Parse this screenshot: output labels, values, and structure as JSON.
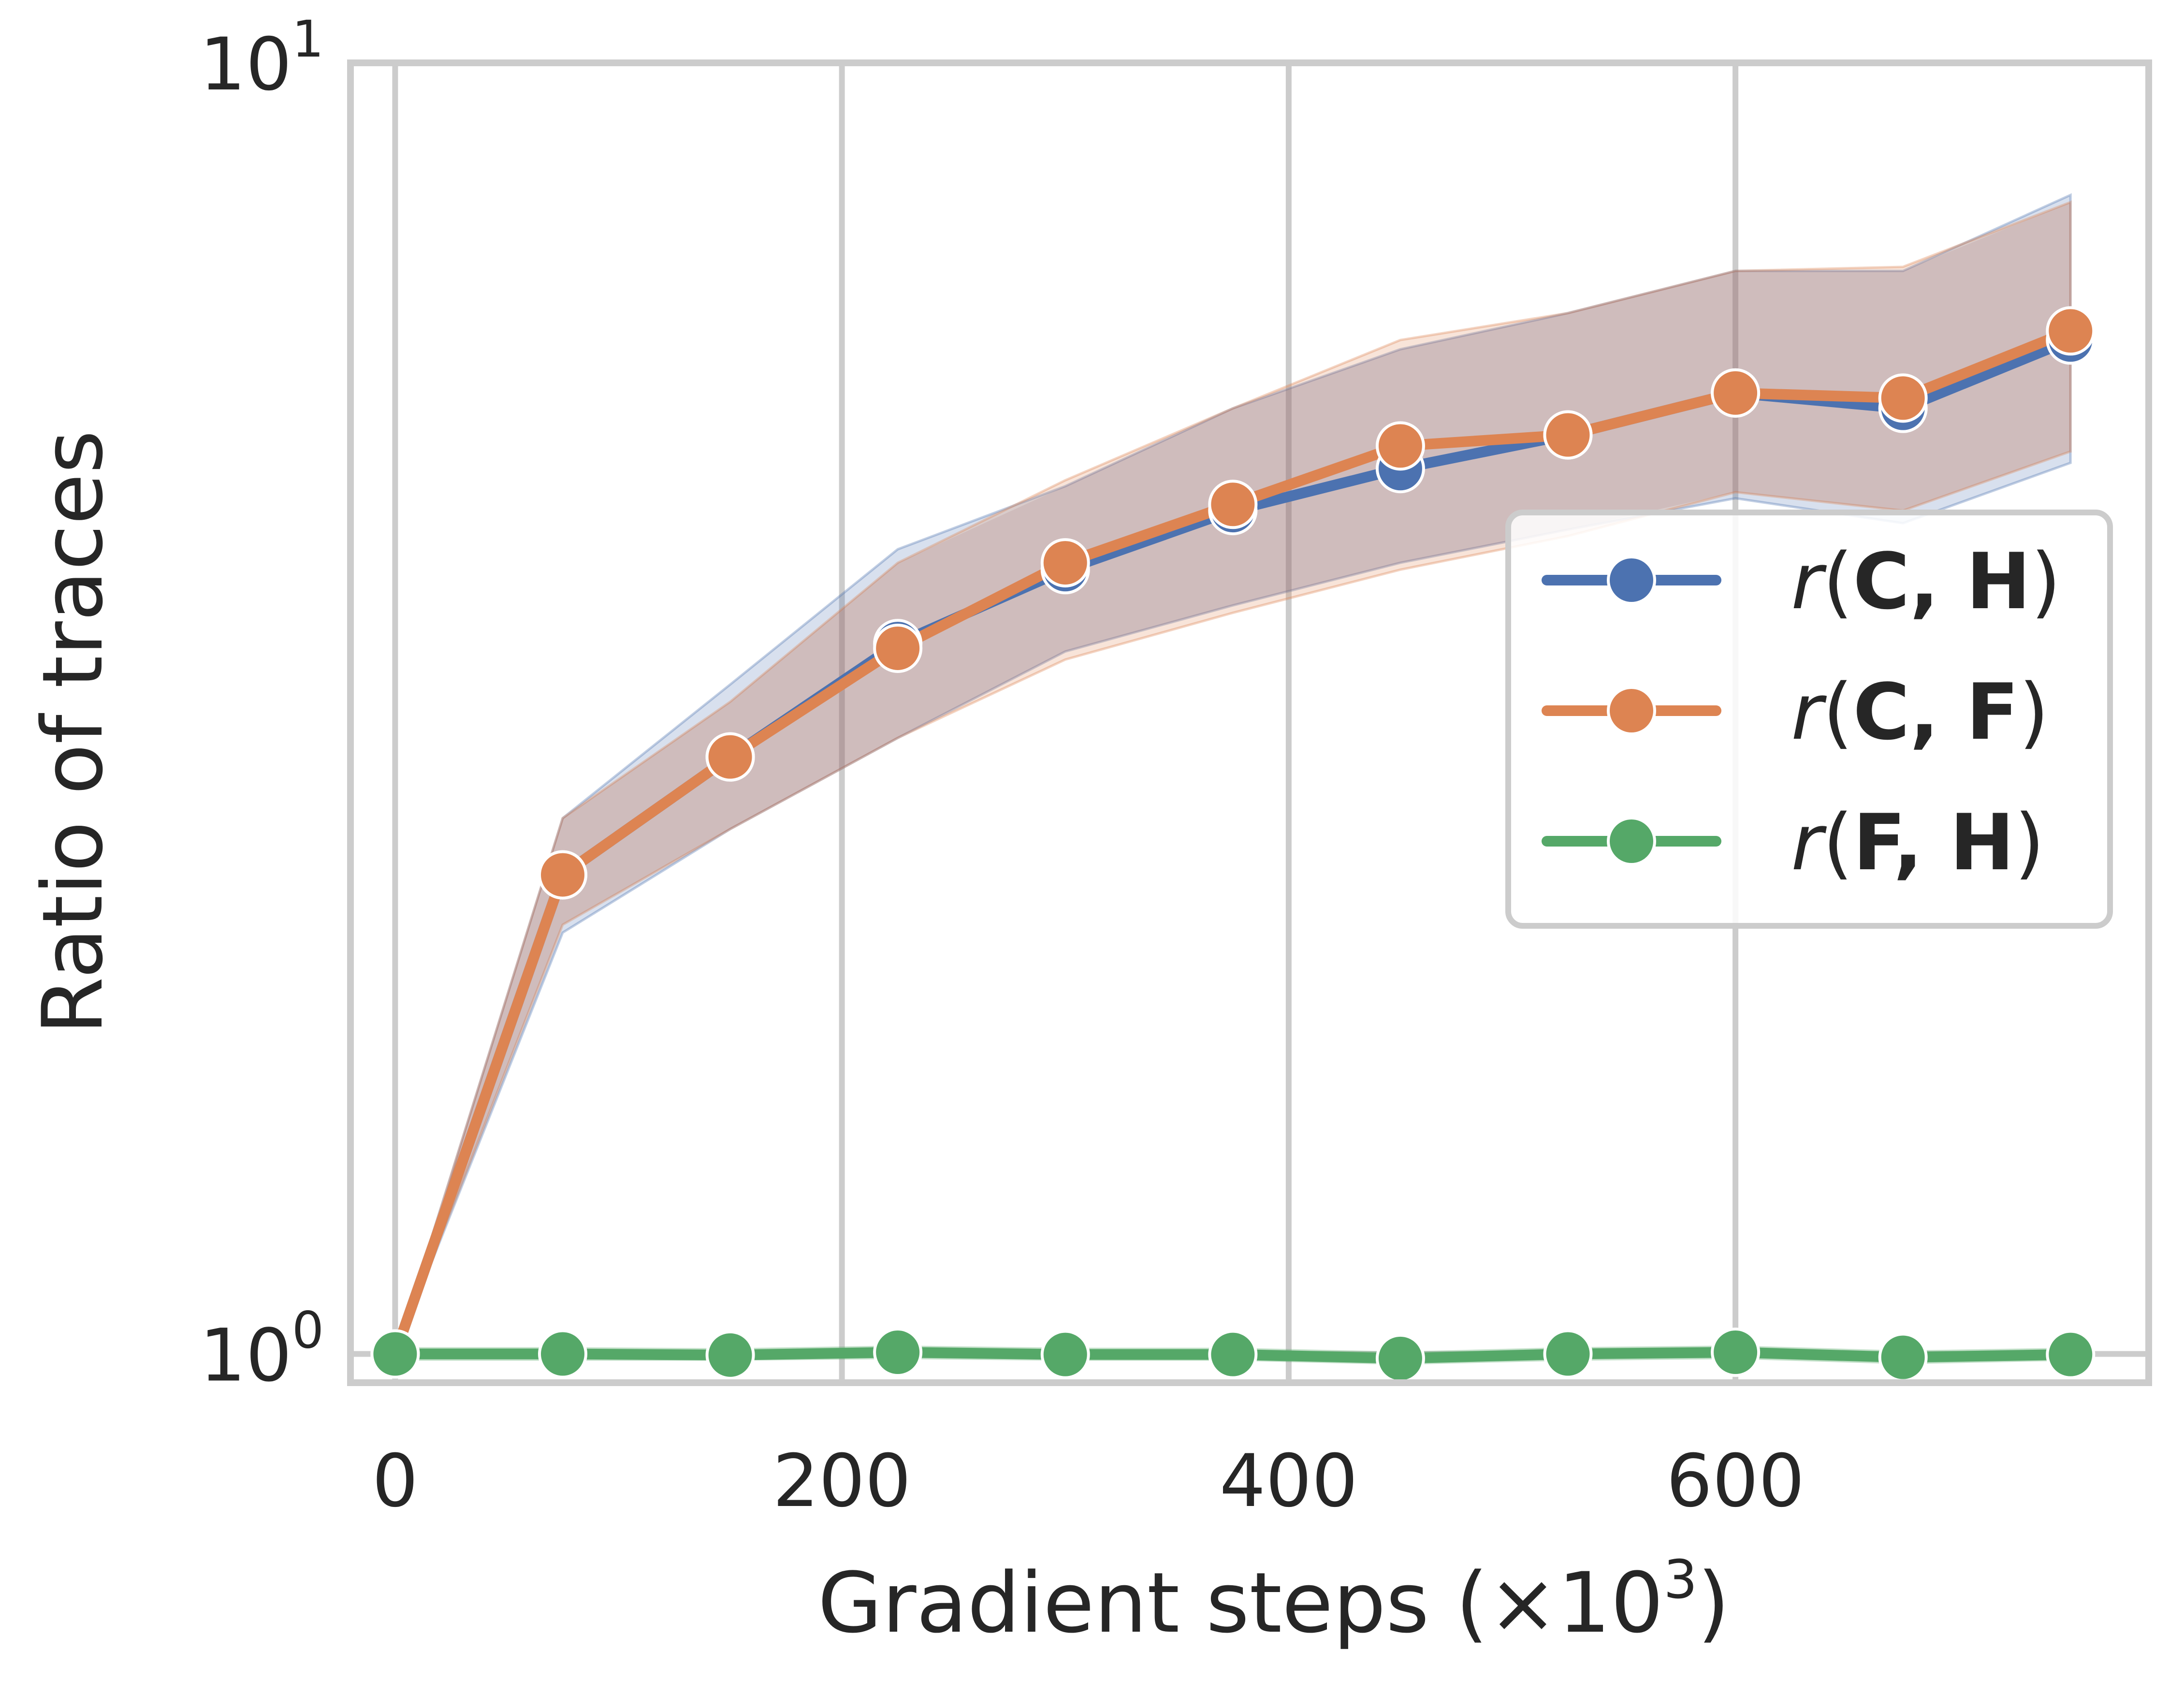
{
  "chart_data": {
    "type": "line",
    "title": "",
    "xlabel": "Gradient steps (×10",
    "xlabel_sup": "3",
    "xlabel_suffix": ")",
    "ylabel": "Ratio of traces",
    "yscale": "log",
    "xlim": [
      -20,
      785
    ],
    "ylim": [
      0.95,
      10
    ],
    "xticks": [
      0,
      200,
      400,
      600
    ],
    "yticks": [
      {
        "value": 1,
        "base": "10",
        "exp": "0"
      },
      {
        "value": 10,
        "base": "10",
        "exp": "1"
      }
    ],
    "grid": true,
    "legend_position": "center-right",
    "x": [
      0,
      75,
      150,
      225,
      300,
      375,
      450,
      525,
      600,
      675,
      750
    ],
    "series": [
      {
        "name": "r(C, H)",
        "label_func": "r",
        "label_args": "C, H",
        "color": "#4c72b0",
        "values": [
          1.0,
          2.35,
          2.9,
          3.55,
          4.05,
          4.5,
          4.85,
          5.15,
          5.55,
          5.4,
          6.1
        ],
        "lower": [
          1.0,
          2.12,
          2.55,
          3.0,
          3.5,
          3.8,
          4.1,
          4.35,
          4.6,
          4.4,
          4.9
        ],
        "upper": [
          1.0,
          2.6,
          3.3,
          4.2,
          4.7,
          5.4,
          6.0,
          6.4,
          6.9,
          6.9,
          7.9
        ]
      },
      {
        "name": "r(C, F)",
        "label_func": "r",
        "label_args": "C, F",
        "color": "#dd8452",
        "values": [
          1.0,
          2.35,
          2.9,
          3.52,
          4.1,
          4.55,
          5.05,
          5.15,
          5.55,
          5.5,
          6.2
        ],
        "lower": [
          1.0,
          2.15,
          2.55,
          3.0,
          3.45,
          3.75,
          4.05,
          4.3,
          4.65,
          4.5,
          5.0
        ],
        "upper": [
          1.0,
          2.6,
          3.2,
          4.1,
          4.75,
          5.4,
          6.1,
          6.4,
          6.9,
          6.95,
          7.8
        ]
      },
      {
        "name": "r(F, H)",
        "label_func": "r",
        "label_args": "F, H",
        "color": "#55a868",
        "values": [
          1.0,
          1.0,
          0.998,
          1.003,
          0.999,
          0.999,
          0.992,
          1.0,
          1.003,
          0.994,
          0.999
        ],
        "lower": [
          0.99,
          0.99,
          0.99,
          0.993,
          0.99,
          0.99,
          0.983,
          0.99,
          0.993,
          0.984,
          0.99
        ],
        "upper": [
          1.01,
          1.01,
          1.008,
          1.013,
          1.009,
          1.009,
          1.002,
          1.01,
          1.013,
          1.004,
          1.009
        ]
      }
    ],
    "band_color": "#8c4a52"
  }
}
